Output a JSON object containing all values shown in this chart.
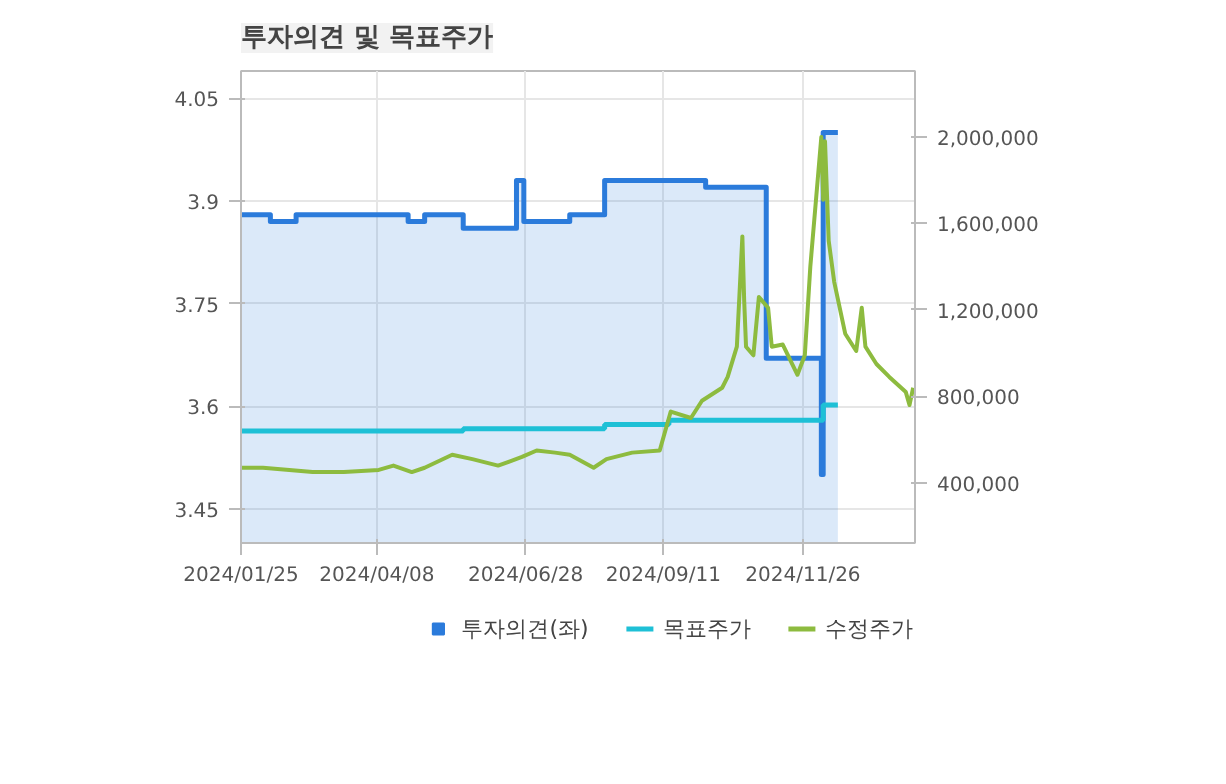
{
  "chart_data": {
    "type": "line",
    "title": "투자의견 및 목표주가",
    "xlim": [
      "2024-01-25",
      "2025-01-26"
    ],
    "xticks": [
      {
        "value": "2024-01-25",
        "label": "2024/01/25"
      },
      {
        "value": "2024-04-08",
        "label": "2024/04/08"
      },
      {
        "value": "2024-06-28",
        "label": "2024/06/28"
      },
      {
        "value": "2024-09-11",
        "label": "2024/09/11"
      },
      {
        "value": "2024-11-26",
        "label": "2024/11/26"
      }
    ],
    "ylim": [
      3.4,
      4.09
    ],
    "yticks": [
      3.45,
      3.6,
      3.75,
      3.9,
      4.05
    ],
    "y2lim": [
      122000,
      2305000
    ],
    "y2ticks": [
      {
        "value": 400000,
        "label": "400,000"
      },
      {
        "value": 800000,
        "label": "800,000"
      },
      {
        "value": 1200000,
        "label": "1,200,000"
      },
      {
        "value": 1600000,
        "label": "1,600,000"
      },
      {
        "value": 2000000,
        "label": "2,000,000"
      }
    ],
    "grid": true,
    "legend": "bottom",
    "series": [
      {
        "name": "투자의견(좌)",
        "type": "area",
        "color": "#2b7bdb",
        "x": [
          "2024-01-25",
          "2024-02-10",
          "2024-02-10",
          "2024-02-24",
          "2024-02-24",
          "2024-04-25",
          "2024-04-25",
          "2024-05-04",
          "2024-05-04",
          "2024-05-25",
          "2024-05-25",
          "2024-06-23",
          "2024-06-23",
          "2024-06-27",
          "2024-06-27",
          "2024-07-22",
          "2024-07-22",
          "2024-08-10",
          "2024-08-10",
          "2024-10-04",
          "2024-10-04",
          "2024-11-06",
          "2024-11-06",
          "2024-12-06",
          "2024-12-06",
          "2024-12-07",
          "2024-12-07",
          "2024-12-15"
        ],
        "values": [
          3.88,
          3.88,
          3.87,
          3.87,
          3.88,
          3.88,
          3.87,
          3.87,
          3.88,
          3.88,
          3.86,
          3.86,
          3.93,
          3.93,
          3.87,
          3.87,
          3.88,
          3.88,
          3.93,
          3.93,
          3.92,
          3.92,
          3.67,
          3.67,
          3.5,
          3.5,
          4.0,
          4.0
        ]
      },
      {
        "name": "목표주가",
        "type": "step",
        "axis": "y2",
        "color": "#1ec0d6",
        "x": [
          "2024-01-25",
          "2024-05-25",
          "2024-08-10",
          "2024-09-14",
          "2024-12-07",
          "2024-12-15"
        ],
        "values": [
          640000,
          650000,
          670000,
          690000,
          760000,
          760000
        ]
      },
      {
        "name": "수정주가",
        "axis": "y2",
        "color": "#8dbb3f",
        "x": [
          "2024-01-25",
          "2024-02-06",
          "2024-03-04",
          "2024-03-21",
          "2024-04-09",
          "2024-04-17",
          "2024-04-27",
          "2024-05-04",
          "2024-05-19",
          "2024-05-30",
          "2024-06-13",
          "2024-06-26",
          "2024-07-04",
          "2024-07-14",
          "2024-07-22",
          "2024-08-04",
          "2024-08-11",
          "2024-08-25",
          "2024-09-09",
          "2024-09-15",
          "2024-09-26",
          "2024-10-02",
          "2024-10-13",
          "2024-10-16",
          "2024-10-21",
          "2024-10-24",
          "2024-10-25",
          "2024-10-26",
          "2024-10-30",
          "2024-11-02",
          "2024-11-07",
          "2024-11-09",
          "2024-11-15",
          "2024-11-23",
          "2024-11-27",
          "2024-11-30",
          "2024-12-06",
          "2024-12-07",
          "2024-12-08",
          "2024-12-10",
          "2024-12-13",
          "2024-12-19",
          "2024-12-25",
          "2024-12-28",
          "2024-12-30",
          "2025-01-05",
          "2025-01-12",
          "2025-01-21",
          "2025-01-23",
          "2025-01-25"
        ],
        "values": [
          470000,
          470000,
          450000,
          450000,
          460000,
          480000,
          450000,
          470000,
          530000,
          510000,
          480000,
          520000,
          550000,
          540000,
          530000,
          470000,
          510000,
          540000,
          550000,
          730000,
          700000,
          780000,
          840000,
          890000,
          1030000,
          1540000,
          1240000,
          1030000,
          990000,
          1260000,
          1210000,
          1030000,
          1040000,
          900000,
          990000,
          1400000,
          2000000,
          1710000,
          1980000,
          1520000,
          1330000,
          1090000,
          1010000,
          1210000,
          1030000,
          950000,
          890000,
          820000,
          760000,
          840000
        ]
      }
    ]
  }
}
